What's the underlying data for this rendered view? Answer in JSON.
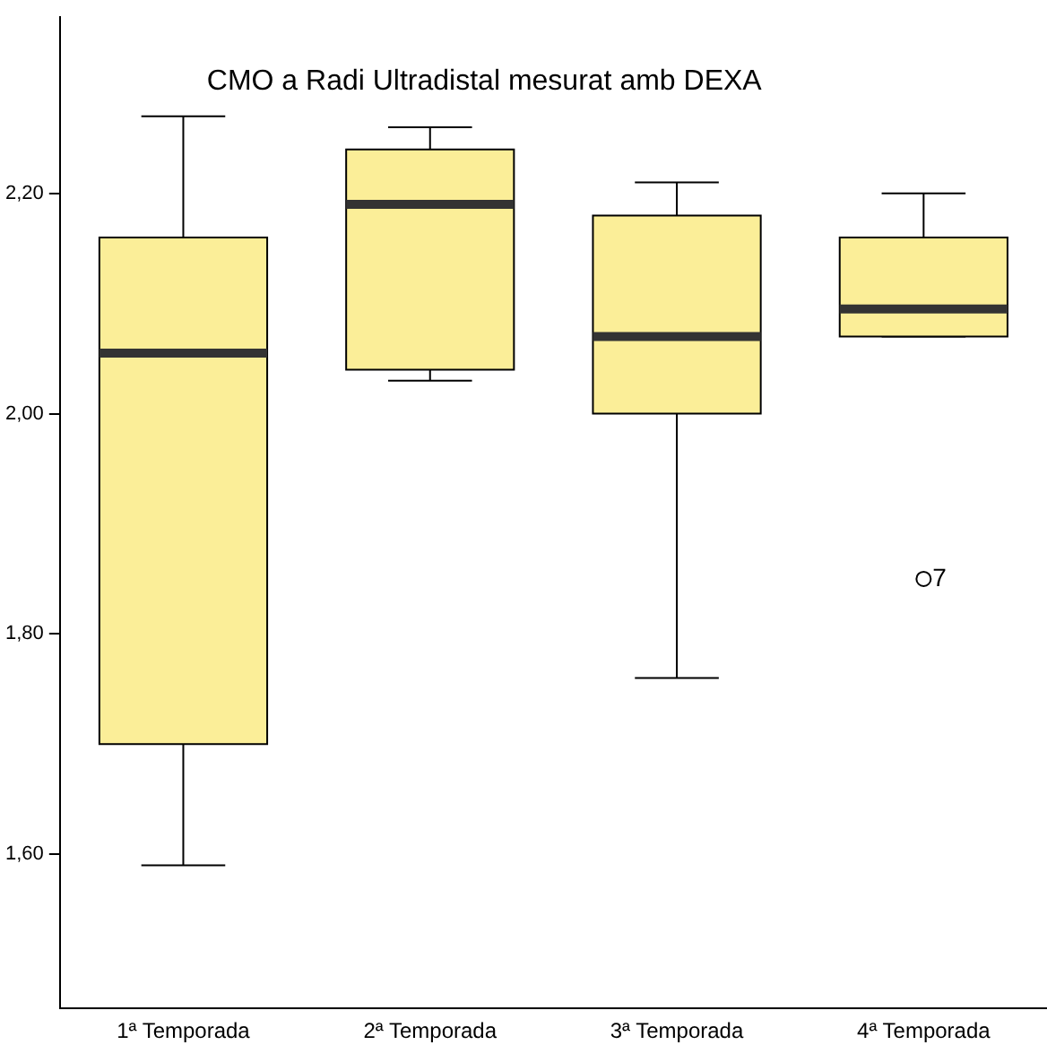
{
  "chart_data": {
    "type": "box",
    "title": "CMO a Radi Ultradistal mesurat amb DEXA",
    "categories": [
      "1ª Temporada",
      "2ª Temporada",
      "3ª Temporada",
      "4ª Temporada"
    ],
    "boxes": [
      {
        "low": 1.59,
        "q1": 1.7,
        "median": 2.055,
        "q3": 2.16,
        "high": 2.27
      },
      {
        "low": 2.03,
        "q1": 2.04,
        "median": 2.19,
        "q3": 2.24,
        "high": 2.26
      },
      {
        "low": 1.76,
        "q1": 2.0,
        "median": 2.07,
        "q3": 2.18,
        "high": 2.21
      },
      {
        "low": 2.07,
        "q1": 2.07,
        "median": 2.095,
        "q3": 2.16,
        "high": 2.2,
        "outliers": [
          1.85
        ]
      }
    ],
    "color": "#fbee98",
    "ylim": [
      1.46,
      2.36
    ],
    "yticks": [
      {
        "value": 1.6,
        "label": "1,60"
      },
      {
        "value": 1.8,
        "label": "1,80"
      },
      {
        "value": 2.0,
        "label": "2,00"
      },
      {
        "value": 2.2,
        "label": "2,20"
      }
    ],
    "annotations": [
      "7"
    ],
    "grid": false,
    "legend": false
  }
}
